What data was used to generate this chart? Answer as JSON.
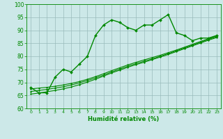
{
  "xlabel": "Humidité relative (%)",
  "bg_color": "#cce8e8",
  "grid_color": "#99bbbb",
  "line_color": "#008800",
  "xlim": [
    -0.5,
    23.5
  ],
  "ylim": [
    60,
    100
  ],
  "yticks": [
    60,
    65,
    70,
    75,
    80,
    85,
    90,
    95,
    100
  ],
  "xticks": [
    0,
    1,
    2,
    3,
    4,
    5,
    6,
    7,
    8,
    9,
    10,
    11,
    12,
    13,
    14,
    15,
    16,
    17,
    18,
    19,
    20,
    21,
    22,
    23
  ],
  "series": [
    {
      "x": [
        0,
        1,
        2,
        3,
        4,
        5,
        6,
        7,
        8,
        9,
        10,
        11,
        12,
        13,
        14,
        15,
        16,
        17,
        18,
        19,
        20,
        21,
        22,
        23
      ],
      "y": [
        68,
        66,
        66,
        72,
        75,
        74,
        77,
        80,
        88,
        92,
        94,
        93,
        91,
        90,
        92,
        92,
        94,
        96,
        89,
        88,
        86,
        87,
        87,
        88
      ],
      "marker": "D",
      "markersize": 2.0,
      "linewidth": 1.0
    },
    {
      "x": [
        0,
        1,
        2,
        3,
        4,
        5,
        6,
        7,
        8,
        9,
        10,
        11,
        12,
        13,
        14,
        15,
        16,
        17,
        18,
        19,
        20,
        21,
        22,
        23
      ],
      "y": [
        67.5,
        67.8,
        68.1,
        68.5,
        69.0,
        69.6,
        70.3,
        71.2,
        72.2,
        73.3,
        74.5,
        75.6,
        76.7,
        77.7,
        78.6,
        79.5,
        80.4,
        81.4,
        82.4,
        83.5,
        84.6,
        85.7,
        86.8,
        87.8
      ],
      "marker": "D",
      "markersize": 1.2,
      "linewidth": 0.8
    },
    {
      "x": [
        0,
        1,
        2,
        3,
        4,
        5,
        6,
        7,
        8,
        9,
        10,
        11,
        12,
        13,
        14,
        15,
        16,
        17,
        18,
        19,
        20,
        21,
        22,
        23
      ],
      "y": [
        66.5,
        66.9,
        67.3,
        67.8,
        68.3,
        69.0,
        69.8,
        70.7,
        71.7,
        72.8,
        74.0,
        75.1,
        76.2,
        77.2,
        78.1,
        79.0,
        80.0,
        81.0,
        82.1,
        83.2,
        84.3,
        85.4,
        86.5,
        87.5
      ],
      "marker": "D",
      "markersize": 1.2,
      "linewidth": 0.8
    },
    {
      "x": [
        0,
        1,
        2,
        3,
        4,
        5,
        6,
        7,
        8,
        9,
        10,
        11,
        12,
        13,
        14,
        15,
        16,
        17,
        18,
        19,
        20,
        21,
        22,
        23
      ],
      "y": [
        65.5,
        65.9,
        66.4,
        66.9,
        67.5,
        68.2,
        69.1,
        70.1,
        71.2,
        72.4,
        73.6,
        74.7,
        75.8,
        76.8,
        77.7,
        78.7,
        79.7,
        80.7,
        81.8,
        82.9,
        84.0,
        85.1,
        86.2,
        87.2
      ],
      "marker": "D",
      "markersize": 1.2,
      "linewidth": 0.8
    }
  ]
}
